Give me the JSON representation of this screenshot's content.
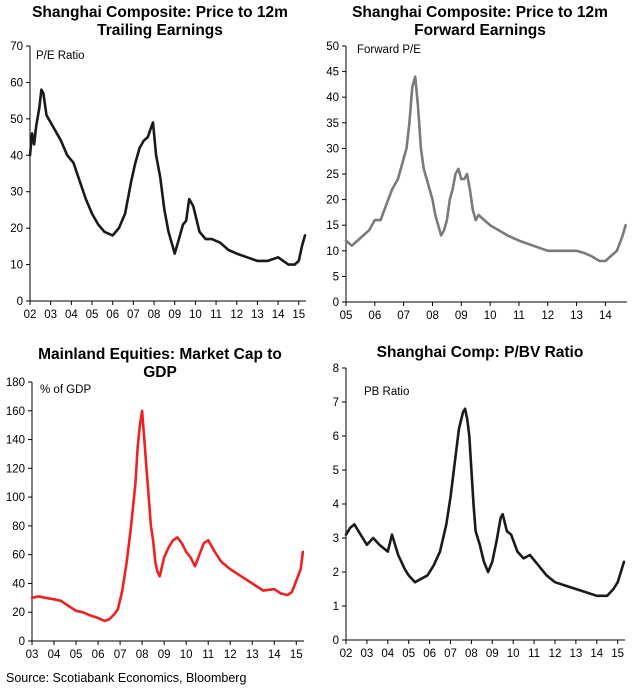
{
  "source": "Source: Scotiabank Economics, Bloomberg",
  "chart_data": [
    {
      "type": "line",
      "title_lines": [
        "Shanghai Composite: Price to 12m",
        "Trailing Earnings"
      ],
      "ylabel": "P/E Ratio",
      "ylim": [
        0,
        70
      ],
      "yticks": [
        0,
        10,
        20,
        30,
        40,
        50,
        60,
        70
      ],
      "xlim": [
        2002.0,
        2015.35
      ],
      "xticks": [
        {
          "pos": 2002,
          "label": "02"
        },
        {
          "pos": 2003,
          "label": "03"
        },
        {
          "pos": 2004,
          "label": "04"
        },
        {
          "pos": 2005,
          "label": "05"
        },
        {
          "pos": 2006,
          "label": "06"
        },
        {
          "pos": 2007,
          "label": "07"
        },
        {
          "pos": 2008,
          "label": "08"
        },
        {
          "pos": 2009,
          "label": "09"
        },
        {
          "pos": 2010,
          "label": "10"
        },
        {
          "pos": 2011,
          "label": "11"
        },
        {
          "pos": 2012,
          "label": "12"
        },
        {
          "pos": 2013,
          "label": "13"
        },
        {
          "pos": 2014,
          "label": "14"
        },
        {
          "pos": 2015,
          "label": "15"
        }
      ],
      "color": "#1a1a1a",
      "series": [
        {
          "x": [
            2002.0,
            2002.1,
            2002.2,
            2002.3,
            2002.45,
            2002.55,
            2002.65,
            2002.8,
            2003.0,
            2003.2,
            2003.5,
            2003.8,
            2004.1,
            2004.4,
            2004.7,
            2005.0,
            2005.3,
            2005.6,
            2006.0,
            2006.3,
            2006.6,
            2006.9,
            2007.1,
            2007.3,
            2007.5,
            2007.7,
            2007.82,
            2007.95,
            2008.1,
            2008.3,
            2008.5,
            2008.7,
            2008.9,
            2009.0,
            2009.2,
            2009.4,
            2009.55,
            2009.7,
            2009.9,
            2010.2,
            2010.5,
            2010.8,
            2011.2,
            2011.6,
            2012.0,
            2012.5,
            2013.0,
            2013.5,
            2014.0,
            2014.5,
            2014.8,
            2015.0,
            2015.15,
            2015.3
          ],
          "y": [
            40,
            46,
            43,
            48,
            53,
            58,
            57,
            51,
            49,
            47,
            44,
            40,
            38,
            33,
            28,
            24,
            21,
            19,
            18,
            20,
            24,
            33,
            38,
            42,
            44,
            45,
            47,
            49,
            40,
            34,
            25,
            19,
            15,
            13,
            17,
            21,
            22,
            28,
            26,
            19,
            17,
            17,
            16,
            14,
            13,
            12,
            11,
            11,
            12,
            10,
            10,
            11,
            15,
            18
          ]
        }
      ]
    },
    {
      "type": "line",
      "title_lines": [
        "Shanghai Composite: Price to 12m",
        "Forward Earnings"
      ],
      "ylabel": "Forward P/E",
      "ylim": [
        0,
        50
      ],
      "yticks": [
        0,
        5,
        10,
        15,
        20,
        25,
        30,
        35,
        40,
        45,
        50
      ],
      "xlim": [
        2005.0,
        2014.75
      ],
      "xticks": [
        {
          "pos": 2005,
          "label": "05"
        },
        {
          "pos": 2006,
          "label": "06"
        },
        {
          "pos": 2007,
          "label": "07"
        },
        {
          "pos": 2008,
          "label": "08"
        },
        {
          "pos": 2009,
          "label": "09"
        },
        {
          "pos": 2010,
          "label": "10"
        },
        {
          "pos": 2011,
          "label": "11"
        },
        {
          "pos": 2012,
          "label": "12"
        },
        {
          "pos": 2013,
          "label": "13"
        },
        {
          "pos": 2014,
          "label": "14"
        }
      ],
      "color": "#7a7a7a",
      "series": [
        {
          "x": [
            2005.0,
            2005.2,
            2005.4,
            2005.6,
            2005.8,
            2006.0,
            2006.2,
            2006.4,
            2006.6,
            2006.8,
            2006.9,
            2007.0,
            2007.1,
            2007.2,
            2007.3,
            2007.4,
            2007.5,
            2007.6,
            2007.7,
            2007.8,
            2007.9,
            2008.0,
            2008.1,
            2008.2,
            2008.3,
            2008.4,
            2008.5,
            2008.6,
            2008.7,
            2008.8,
            2008.9,
            2009.0,
            2009.1,
            2009.2,
            2009.3,
            2009.4,
            2009.5,
            2009.6,
            2009.8,
            2010.0,
            2010.3,
            2010.6,
            2011.0,
            2011.5,
            2012.0,
            2012.5,
            2013.0,
            2013.3,
            2013.5,
            2013.8,
            2014.0,
            2014.2,
            2014.4,
            2014.6,
            2014.7
          ],
          "y": [
            12,
            11,
            12,
            13,
            14,
            16,
            16,
            19,
            22,
            24,
            26,
            28,
            30,
            35,
            42,
            44,
            38,
            30,
            26,
            24,
            22,
            20,
            17,
            15,
            13,
            14,
            16,
            20,
            22,
            25,
            26,
            24,
            24,
            25,
            22,
            18,
            16,
            17,
            16,
            15,
            14,
            13,
            12,
            11,
            10,
            10,
            10,
            9.5,
            9,
            8,
            8,
            9,
            10,
            13,
            15
          ]
        }
      ]
    },
    {
      "type": "line",
      "title_lines": [
        "Mainland Equities: Market Cap to",
        "GDP"
      ],
      "ylabel": "% of GDP",
      "ylim": [
        0,
        180
      ],
      "yticks": [
        0,
        20,
        40,
        60,
        80,
        100,
        120,
        140,
        160,
        180
      ],
      "xlim": [
        2003.0,
        2015.35
      ],
      "xticks": [
        {
          "pos": 2003,
          "label": "03"
        },
        {
          "pos": 2004,
          "label": "04"
        },
        {
          "pos": 2005,
          "label": "05"
        },
        {
          "pos": 2006,
          "label": "06"
        },
        {
          "pos": 2007,
          "label": "07"
        },
        {
          "pos": 2008,
          "label": "08"
        },
        {
          "pos": 2009,
          "label": "09"
        },
        {
          "pos": 2010,
          "label": "10"
        },
        {
          "pos": 2011,
          "label": "11"
        },
        {
          "pos": 2012,
          "label": "12"
        },
        {
          "pos": 2013,
          "label": "13"
        },
        {
          "pos": 2014,
          "label": "14"
        },
        {
          "pos": 2015,
          "label": "15"
        }
      ],
      "color": "#ee2222",
      "series": [
        {
          "x": [
            2003.0,
            2003.3,
            2003.6,
            2004.0,
            2004.3,
            2004.6,
            2005.0,
            2005.3,
            2005.6,
            2006.0,
            2006.3,
            2006.5,
            2006.7,
            2006.9,
            2007.1,
            2007.3,
            2007.5,
            2007.7,
            2007.8,
            2007.9,
            2008.0,
            2008.1,
            2008.2,
            2008.3,
            2008.4,
            2008.5,
            2008.6,
            2008.7,
            2008.8,
            2009.0,
            2009.2,
            2009.4,
            2009.6,
            2009.8,
            2010.0,
            2010.2,
            2010.4,
            2010.6,
            2010.8,
            2011.0,
            2011.3,
            2011.6,
            2012.0,
            2012.5,
            2013.0,
            2013.5,
            2014.0,
            2014.3,
            2014.6,
            2014.8,
            2015.0,
            2015.2,
            2015.3
          ],
          "y": [
            30,
            31,
            30,
            29,
            28,
            25,
            21,
            20,
            18,
            16,
            14,
            15,
            18,
            22,
            35,
            55,
            80,
            110,
            135,
            150,
            160,
            140,
            120,
            100,
            80,
            70,
            55,
            48,
            45,
            58,
            65,
            70,
            72,
            68,
            62,
            58,
            52,
            60,
            68,
            70,
            62,
            55,
            50,
            45,
            40,
            35,
            36,
            33,
            32,
            34,
            42,
            50,
            62
          ]
        }
      ]
    },
    {
      "type": "line",
      "title_lines": [
        "Shanghai Comp: P/BV Ratio"
      ],
      "ylabel": "PB Ratio",
      "ylim": [
        0,
        8
      ],
      "yticks": [
        0,
        1,
        2,
        3,
        4,
        5,
        6,
        7,
        8
      ],
      "xlim": [
        2002.0,
        2015.35
      ],
      "xticks": [
        {
          "pos": 2002,
          "label": "02"
        },
        {
          "pos": 2003,
          "label": "03"
        },
        {
          "pos": 2004,
          "label": "04"
        },
        {
          "pos": 2005,
          "label": "05"
        },
        {
          "pos": 2006,
          "label": "06"
        },
        {
          "pos": 2007,
          "label": "07"
        },
        {
          "pos": 2008,
          "label": "08"
        },
        {
          "pos": 2009,
          "label": "09"
        },
        {
          "pos": 2010,
          "label": "10"
        },
        {
          "pos": 2011,
          "label": "11"
        },
        {
          "pos": 2012,
          "label": "12"
        },
        {
          "pos": 2013,
          "label": "13"
        },
        {
          "pos": 2014,
          "label": "14"
        },
        {
          "pos": 2015,
          "label": "15"
        }
      ],
      "color": "#1a1a1a",
      "series": [
        {
          "x": [
            2002.0,
            2002.2,
            2002.4,
            2002.6,
            2002.8,
            2003.0,
            2003.3,
            2003.6,
            2004.0,
            2004.2,
            2004.5,
            2004.8,
            2005.0,
            2005.3,
            2005.6,
            2005.9,
            2006.2,
            2006.5,
            2006.8,
            2007.0,
            2007.2,
            2007.4,
            2007.6,
            2007.7,
            2007.8,
            2007.9,
            2008.0,
            2008.1,
            2008.2,
            2008.4,
            2008.6,
            2008.8,
            2009.0,
            2009.2,
            2009.4,
            2009.5,
            2009.7,
            2009.9,
            2010.2,
            2010.5,
            2010.8,
            2011.2,
            2011.6,
            2012.0,
            2012.5,
            2013.0,
            2013.5,
            2014.0,
            2014.5,
            2014.8,
            2015.0,
            2015.2,
            2015.3
          ],
          "y": [
            3.1,
            3.3,
            3.4,
            3.2,
            3.0,
            2.8,
            3.0,
            2.8,
            2.6,
            3.1,
            2.5,
            2.1,
            1.9,
            1.7,
            1.8,
            1.9,
            2.2,
            2.6,
            3.4,
            4.2,
            5.2,
            6.2,
            6.7,
            6.8,
            6.5,
            6.0,
            5.0,
            4.0,
            3.2,
            2.8,
            2.3,
            2.0,
            2.3,
            2.9,
            3.6,
            3.7,
            3.2,
            3.1,
            2.6,
            2.4,
            2.5,
            2.2,
            1.9,
            1.7,
            1.6,
            1.5,
            1.4,
            1.3,
            1.3,
            1.5,
            1.7,
            2.1,
            2.3
          ]
        }
      ]
    }
  ]
}
